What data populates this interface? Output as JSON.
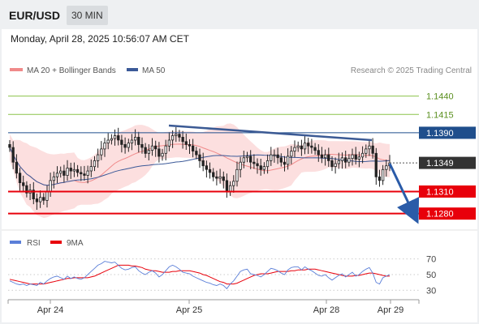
{
  "header": {
    "symbol": "EUR/USD",
    "interval": "30 MIN",
    "datetime": "Monday, April 28, 2025 10:56:07 AM CET"
  },
  "legend": {
    "ma20": "MA 20 + Bollinger Bands",
    "ma50": "MA 50",
    "credit": "Research © 2025 Trading Central",
    "rsi": "RSI",
    "rsi_ma": "9MA"
  },
  "colors": {
    "support": "#e8000b",
    "resistance_green": "#8bc34a",
    "resistance_blue": "#1f4e8c",
    "current": "#333333",
    "ma20": "#f08a8a",
    "ma50": "#3b5998",
    "bollinger_fill": "#fbd4d4",
    "arrow": "#2a5ba8",
    "rsi_line": "#5b7fd8",
    "rsi_ma": "#e8000b",
    "bull": "#ffffff",
    "bear": "#222222"
  },
  "chart_data": {
    "type": "candlestick",
    "x_ticks": [
      "Apr 24",
      "Apr 25",
      "Apr 28",
      "Apr 29"
    ],
    "ylim": [
      1.1262,
      1.1466
    ],
    "levels": [
      {
        "value": 1.144,
        "label": "1.1440",
        "kind": "resistance"
      },
      {
        "value": 1.1415,
        "label": "1.1415",
        "kind": "resistance"
      },
      {
        "value": 1.139,
        "label": "1.1390",
        "kind": "resistance"
      },
      {
        "value": 1.1349,
        "label": "1.1349",
        "kind": "current"
      },
      {
        "value": 1.131,
        "label": "1.1310",
        "kind": "support"
      },
      {
        "value": 1.128,
        "label": "1.1280",
        "kind": "support"
      }
    ],
    "close": [
      1.137,
      1.135,
      1.1335,
      1.1322,
      1.1318,
      1.1308,
      1.1312,
      1.13,
      1.1296,
      1.1302,
      1.1298,
      1.131,
      1.1325,
      1.133,
      1.1335,
      1.1338,
      1.1332,
      1.1342,
      1.1338,
      1.134,
      1.1336,
      1.1334,
      1.1332,
      1.1338,
      1.1344,
      1.1352,
      1.136,
      1.1368,
      1.1376,
      1.138,
      1.1382,
      1.1386,
      1.138,
      1.1374,
      1.137,
      1.1376,
      1.138,
      1.1384,
      1.1374,
      1.137,
      1.1362,
      1.1366,
      1.1372,
      1.1368,
      1.1358,
      1.1362,
      1.1372,
      1.138,
      1.1386,
      1.1388,
      1.1384,
      1.1378,
      1.1374,
      1.1372,
      1.1365,
      1.136,
      1.1352,
      1.1345,
      1.134,
      1.1336,
      1.133,
      1.1328,
      1.133,
      1.1325,
      1.131,
      1.1318,
      1.1324,
      1.134,
      1.135,
      1.1356,
      1.1358,
      1.135,
      1.1348,
      1.1345,
      1.134,
      1.1344,
      1.1352,
      1.136,
      1.136,
      1.1356,
      1.135,
      1.1347,
      1.1358,
      1.1365,
      1.137,
      1.1372,
      1.1368,
      1.1376,
      1.1372,
      1.137,
      1.1366,
      1.136,
      1.1356,
      1.136,
      1.1352,
      1.1344,
      1.1348,
      1.1352,
      1.1356,
      1.135,
      1.1355,
      1.136,
      1.1354,
      1.1357,
      1.1362,
      1.1368,
      1.1372,
      1.1362,
      1.133,
      1.1325,
      1.134,
      1.1345,
      1.1349
    ],
    "rsi": {
      "ylim": [
        22,
        78
      ],
      "levels": [
        70,
        50,
        30
      ],
      "values": [
        42,
        40,
        38,
        37,
        38,
        36,
        38,
        37,
        36,
        40,
        38,
        42,
        45,
        47,
        48,
        46,
        44,
        48,
        45,
        47,
        45,
        44,
        46,
        50,
        54,
        58,
        62,
        64,
        67,
        66,
        65,
        66,
        62,
        58,
        56,
        57,
        59,
        60,
        55,
        52,
        50,
        53,
        55,
        52,
        47,
        50,
        55,
        60,
        62,
        60,
        57,
        53,
        52,
        51,
        48,
        46,
        44,
        42,
        40,
        39,
        37,
        36,
        38,
        36,
        32,
        38,
        42,
        48,
        54,
        56,
        57,
        51,
        50,
        49,
        47,
        50,
        54,
        58,
        57,
        55,
        52,
        50,
        56,
        59,
        60,
        60,
        56,
        60,
        57,
        55,
        52,
        49,
        48,
        50,
        46,
        43,
        46,
        49,
        51,
        47,
        50,
        53,
        48,
        50,
        54,
        57,
        59,
        52,
        40,
        38,
        46,
        48,
        50
      ],
      "ma": [
        44,
        43,
        42,
        41,
        40,
        39,
        38,
        38,
        38,
        38,
        38,
        39,
        40,
        41,
        42,
        43,
        44,
        45,
        45,
        46,
        46,
        46,
        46,
        46,
        47,
        48,
        50,
        52,
        54,
        56,
        58,
        60,
        62,
        62,
        62,
        62,
        61,
        61,
        60,
        59,
        57,
        56,
        55,
        55,
        54,
        53,
        53,
        53,
        54,
        54,
        55,
        55,
        55,
        55,
        54,
        53,
        52,
        50,
        49,
        47,
        45,
        43,
        41,
        40,
        38,
        38,
        38,
        39,
        41,
        43,
        45,
        47,
        49,
        50,
        51,
        51,
        51,
        52,
        53,
        54,
        54,
        54,
        54,
        55,
        55,
        56,
        56,
        56,
        57,
        57,
        57,
        56,
        55,
        54,
        53,
        52,
        51,
        50,
        49,
        48,
        48,
        48,
        49,
        49,
        50,
        51,
        52,
        52,
        51,
        50,
        49,
        48,
        48
      ]
    }
  }
}
